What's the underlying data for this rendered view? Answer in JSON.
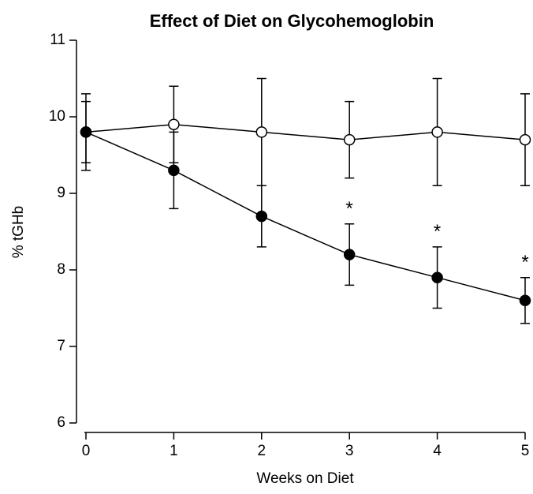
{
  "chart_data": {
    "type": "line",
    "title": "Effect of Diet on Glycohemoglobin",
    "x_label": "Weeks on Diet",
    "y_label": "% tGHb",
    "x": [
      0,
      1,
      2,
      3,
      4,
      5
    ],
    "series": [
      {
        "color": "#000000",
        "marker_fill": "#ffffff",
        "values": [
          9.8,
          9.9,
          9.8,
          9.7,
          9.8,
          9.7
        ],
        "errors": [
          0.5,
          0.5,
          0.7,
          0.5,
          0.7,
          0.6
        ]
      },
      {
        "color": "#000000",
        "marker_fill": "#000000",
        "values": [
          9.8,
          9.3,
          8.7,
          8.2,
          7.9,
          7.6
        ],
        "errors": [
          0.4,
          0.5,
          0.4,
          0.4,
          0.4,
          0.3
        ]
      }
    ],
    "annotations": [
      {
        "text": "*",
        "x": 3
      },
      {
        "text": "*",
        "x": 4
      },
      {
        "text": "*",
        "x": 5
      }
    ],
    "xlim": [
      0,
      5
    ],
    "xticks": [
      0,
      1,
      2,
      3,
      4,
      5
    ],
    "ylim": [
      6,
      11
    ],
    "yticks": [
      6,
      7,
      8,
      9,
      10,
      11
    ]
  }
}
